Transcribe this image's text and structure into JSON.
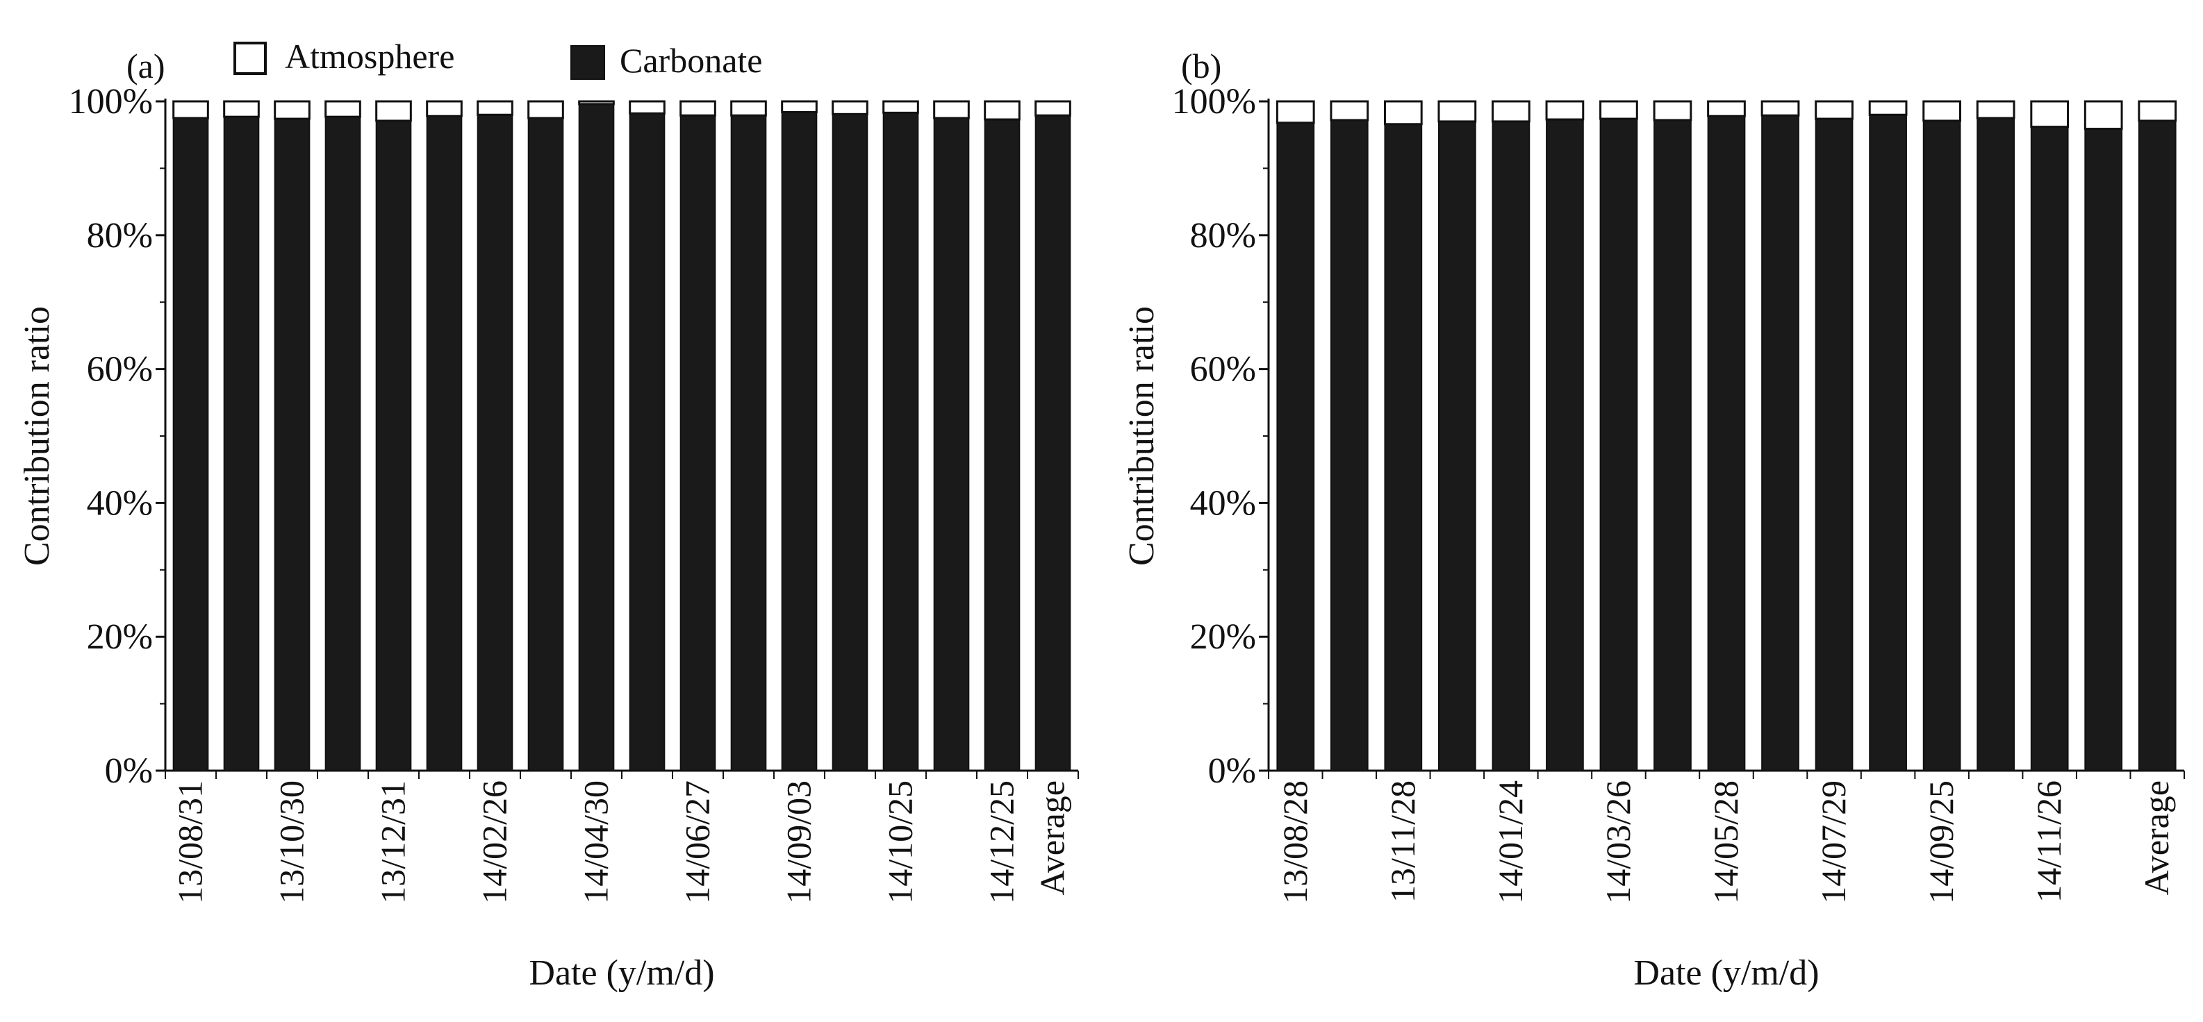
{
  "figure": {
    "legend": [
      {
        "name": "Atmosphere",
        "color": "#ffffff"
      },
      {
        "name": "Carbonate",
        "color": "#1a1a1a"
      }
    ]
  },
  "chart_data": [
    {
      "type": "bar",
      "stacked": true,
      "panel_label": "(a)",
      "xlabel": "Date (y/m/d)",
      "ylabel": "Contribution ratio",
      "ylim": [
        0,
        100
      ],
      "yticks": [
        "0%",
        "20%",
        "40%",
        "60%",
        "80%",
        "100%"
      ],
      "categories": [
        "13/08/31",
        "",
        "13/10/30",
        "",
        "13/12/31",
        "",
        "14/02/26",
        "",
        "14/04/30",
        "",
        "14/06/27",
        "",
        "14/09/03",
        "",
        "14/10/25",
        "",
        "14/12/25",
        "Average"
      ],
      "series": [
        {
          "name": "Carbonate",
          "color": "#1a1a1a",
          "values": [
            97.5,
            97.7,
            97.4,
            97.7,
            97.1,
            97.8,
            98.0,
            97.5,
            99.6,
            98.2,
            97.9,
            97.9,
            98.4,
            98.1,
            98.3,
            97.5,
            97.3,
            97.9
          ]
        },
        {
          "name": "Atmosphere",
          "color": "#ffffff",
          "values": [
            2.5,
            2.3,
            2.6,
            2.3,
            2.9,
            2.2,
            2.0,
            2.5,
            0.4,
            1.8,
            2.1,
            2.1,
            1.6,
            1.9,
            1.7,
            2.5,
            2.7,
            2.1
          ]
        }
      ]
    },
    {
      "type": "bar",
      "stacked": true,
      "panel_label": "(b)",
      "xlabel": "Date (y/m/d)",
      "ylabel": "Contribution ratio",
      "ylim": [
        0,
        100
      ],
      "yticks": [
        "0%",
        "20%",
        "40%",
        "60%",
        "80%",
        "100%"
      ],
      "categories": [
        "13/08/28",
        "",
        "13/11/28",
        "",
        "14/01/24",
        "",
        "14/03/26",
        "",
        "14/05/28",
        "",
        "14/07/29",
        "",
        "14/09/25",
        "",
        "14/11/26",
        "",
        "Average"
      ],
      "series": [
        {
          "name": "Carbonate",
          "color": "#1a1a1a",
          "values": [
            96.8,
            97.2,
            96.6,
            97.0,
            97.0,
            97.3,
            97.4,
            97.2,
            97.8,
            97.9,
            97.4,
            98.0,
            97.1,
            97.5,
            96.2,
            95.9,
            97.1
          ]
        },
        {
          "name": "Atmosphere",
          "color": "#ffffff",
          "values": [
            3.2,
            2.8,
            3.4,
            3.0,
            3.0,
            2.7,
            2.6,
            2.8,
            2.2,
            2.1,
            2.6,
            2.0,
            2.9,
            2.5,
            3.8,
            4.1,
            2.9
          ]
        }
      ]
    }
  ]
}
